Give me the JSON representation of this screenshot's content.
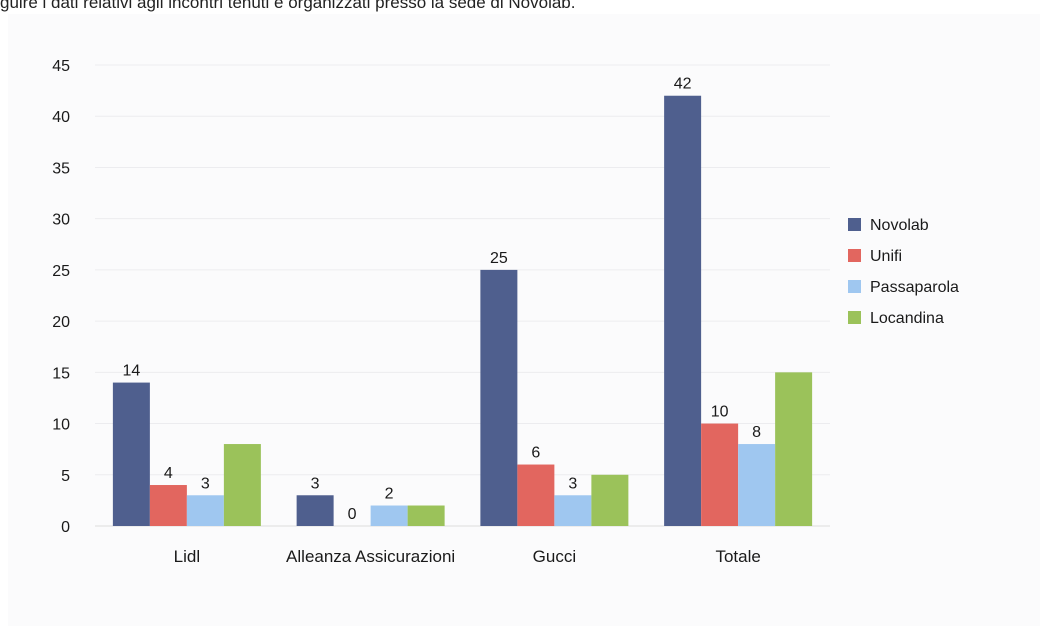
{
  "caption": "guire i dati relativi agli incontri tenuti e organizzati presso la sede di Novolab.",
  "chart_data": {
    "type": "bar",
    "categories": [
      "Lidl",
      "Alleanza Assicurazioni",
      "Gucci",
      "Totale"
    ],
    "series": [
      {
        "name": "Novolab",
        "values": [
          14,
          3,
          25,
          42
        ],
        "color": "#4f5f8e",
        "labels": true
      },
      {
        "name": "Unifi",
        "values": [
          4,
          0,
          6,
          10
        ],
        "color": "#e2665f",
        "labels": true
      },
      {
        "name": "Passaparola",
        "values": [
          3,
          2,
          3,
          8
        ],
        "color": "#9fc7f0",
        "labels": true
      },
      {
        "name": "Locandina",
        "values": [
          8,
          2,
          5,
          15
        ],
        "color": "#9bc25a",
        "labels": false
      }
    ],
    "ylim": [
      0,
      45
    ],
    "yticks": [
      0,
      5,
      10,
      15,
      20,
      25,
      30,
      35,
      40,
      45
    ],
    "grid": true,
    "legend_position": "right"
  }
}
